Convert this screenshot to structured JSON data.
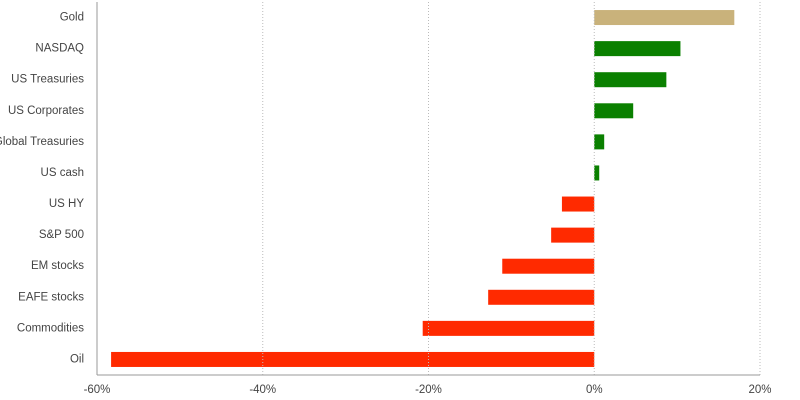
{
  "chart_data": {
    "type": "hbar",
    "categories": [
      "Gold",
      "NASDAQ",
      "US Treasuries",
      "US Corporates",
      "Global Treasuries",
      "US cash",
      "US HY",
      "S&P 500",
      "EM stocks",
      "EAFE stocks",
      "Commodities",
      "Oil"
    ],
    "values": [
      16.9,
      10.4,
      8.7,
      4.7,
      1.2,
      0.6,
      -3.9,
      -5.2,
      -11.1,
      -12.8,
      -20.7,
      -58.3
    ],
    "colors": [
      "#c9b27b",
      "#0a8000",
      "#0a8000",
      "#0a8000",
      "#0a8000",
      "#0a8000",
      "#ff2a00",
      "#ff2a00",
      "#ff2a00",
      "#ff2a00",
      "#ff2a00",
      "#ff2a00"
    ],
    "xlim": [
      -60,
      20
    ],
    "xticks": [
      {
        "value": -60,
        "label": "-60%"
      },
      {
        "value": -40,
        "label": "-40%"
      },
      {
        "value": -20,
        "label": "-20%"
      },
      {
        "value": 0,
        "label": "0%"
      },
      {
        "value": 20,
        "label": "20%"
      }
    ],
    "grid": true
  }
}
